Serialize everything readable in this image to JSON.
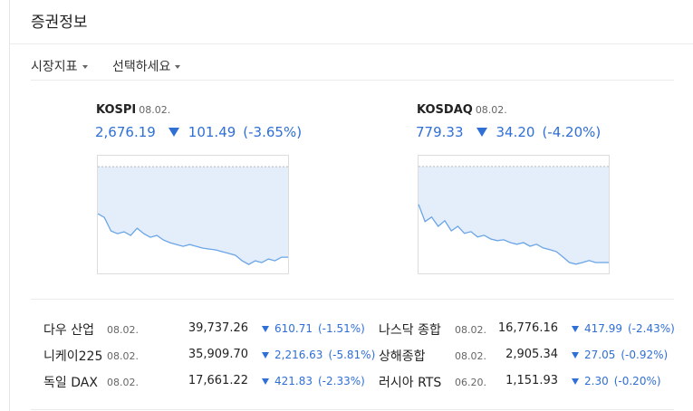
{
  "header": {
    "title": "증권정보"
  },
  "tabs": [
    "시장지표",
    "선택하세요"
  ],
  "main_indices": [
    {
      "name": "KOSPI",
      "date": "08.02.",
      "price": "2,676.19",
      "change": "101.49",
      "rate": "(-3.65%)",
      "chart": {
        "type": "area",
        "baseline": 2777.68,
        "ylim": [
          2657,
          2791
        ],
        "values": [
          2724.9,
          2720.8,
          2705.6,
          2702.6,
          2704.6,
          2700.5,
          2708.7,
          2702.6,
          2698.5,
          2700.5,
          2695.5,
          2692.4,
          2690.4,
          2688.4,
          2690.4,
          2688.4,
          2686.3,
          2685.3,
          2684.3,
          2682.3,
          2680.3,
          2678.2,
          2672.1,
          2668.1,
          2672.1,
          2670.1,
          2674.2,
          2672.1,
          2676.2,
          2676.2
        ]
      }
    },
    {
      "name": "KOSDAQ",
      "date": "08.02.",
      "price": "779.33",
      "change": "34.20",
      "rate": "(-4.20%)",
      "chart": {
        "type": "area",
        "baseline": 813.53,
        "ylim": [
          775.1,
          817.7
        ],
        "values": [
          800.0,
          793.9,
          795.5,
          792.2,
          794.2,
          790.6,
          792.2,
          789.7,
          790.3,
          788.4,
          789.0,
          787.7,
          787.1,
          787.4,
          786.4,
          785.8,
          786.4,
          785.1,
          785.8,
          784.5,
          783.9,
          783.2,
          781.3,
          779.3,
          778.7,
          779.3,
          780.0,
          779.3,
          779.3,
          779.3
        ]
      }
    }
  ],
  "table": {
    "rows": [
      [
        "다우 산업",
        "08.02.",
        "39,737.26",
        "610.71",
        "(-1.51%)"
      ],
      [
        "나스닥 종합",
        "08.02.",
        "16,776.16",
        "417.99",
        "(-2.43%)"
      ],
      [
        "니케이225",
        "08.02.",
        "35,909.70",
        "2,216.63",
        "(-5.81%)"
      ],
      [
        "상해종합",
        "08.02.",
        "2,905.34",
        "27.05",
        "(-0.92%)"
      ],
      [
        "독일 DAX",
        "08.02.",
        "17,661.22",
        "421.83",
        "(-2.33%)"
      ],
      [
        "러시아 RTS",
        "06.20.",
        "1,151.93",
        "2.30",
        "(-0.20%)"
      ]
    ]
  }
}
